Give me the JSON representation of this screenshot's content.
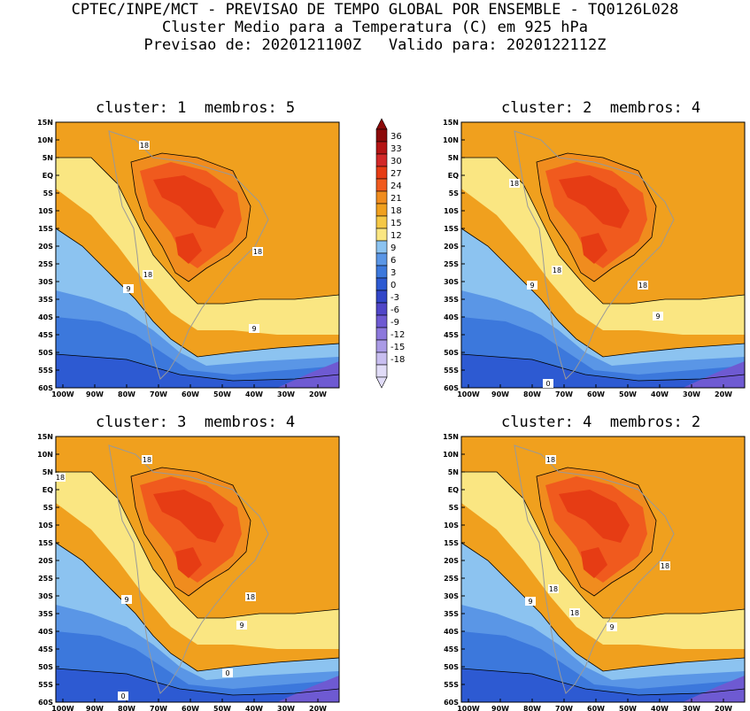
{
  "header": {
    "line1": "CPTEC/INPE/MCT - PREVISAO DE TEMPO GLOBAL POR ENSEMBLE - TQ0126L028",
    "line2": "Cluster Medio para a Temperatura (C) em 925 hPa",
    "line3": "Previsao de: 2020121100Z   Valido para: 2020122112Z"
  },
  "panels": [
    {
      "title": "cluster: 1  membros: 5",
      "labels": [
        "18",
        "18",
        "18",
        "9",
        "9"
      ]
    },
    {
      "title": "cluster: 2  membros: 4",
      "labels": [
        "18",
        "18",
        "18",
        "9",
        "9",
        "0"
      ]
    },
    {
      "title": "cluster: 3  membros: 4",
      "labels": [
        "18",
        "18",
        "18",
        "9",
        "9",
        "0",
        "0"
      ]
    },
    {
      "title": "cluster: 4  membros: 2",
      "labels": [
        "18",
        "18",
        "18",
        "9",
        "9",
        "18"
      ]
    }
  ],
  "lat_ticks": [
    "15N",
    "10N",
    "5N",
    "EQ",
    "5S",
    "10S",
    "15S",
    "20S",
    "25S",
    "30S",
    "35S",
    "40S",
    "45S",
    "50S",
    "55S",
    "60S"
  ],
  "lon_ticks": [
    "100W",
    "90W",
    "80W",
    "70W",
    "60W",
    "50W",
    "40W",
    "30W",
    "20W"
  ],
  "colorbar": {
    "labels": [
      "36",
      "33",
      "30",
      "27",
      "24",
      "21",
      "18",
      "15",
      "12",
      "9",
      "6",
      "3",
      "0",
      "-3",
      "-6",
      "-9",
      "-12",
      "-15",
      "-18"
    ],
    "colors": [
      "#8c0a0a",
      "#b41414",
      "#d22828",
      "#e63c14",
      "#f05a1e",
      "#f08c1e",
      "#f0a01e",
      "#f5c846",
      "#fae682",
      "#8cc3f0",
      "#5a96e6",
      "#3c78dc",
      "#2d5ad2",
      "#3246c8",
      "#5046c8",
      "#6e5ad2",
      "#8c78dc",
      "#aa9be6",
      "#c8bef0",
      "#e1dcf8"
    ]
  }
}
